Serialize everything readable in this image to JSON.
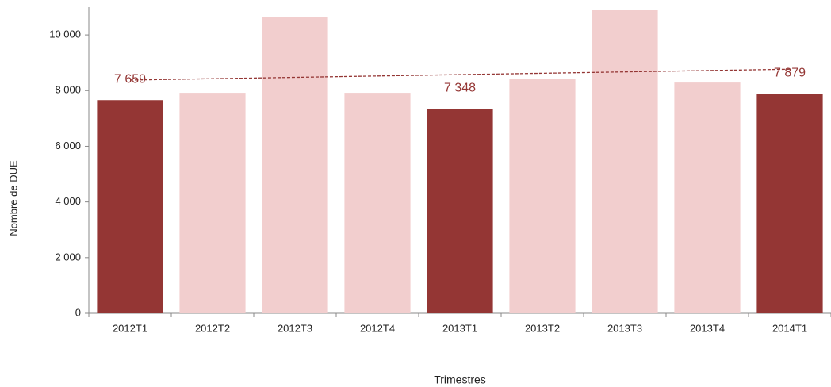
{
  "chart_data": {
    "type": "bar",
    "x_label": "Trimestres",
    "y_label": "Nombre de DUE",
    "categories": [
      "2012T1",
      "2012T2",
      "2012T3",
      "2012T4",
      "2013T1",
      "2013T2",
      "2013T3",
      "2013T4",
      "2014T1"
    ],
    "values": [
      7659,
      7920,
      10650,
      7920,
      7348,
      8430,
      10910,
      8290,
      7879
    ],
    "value_labels": [
      "7 659",
      null,
      null,
      null,
      "7 348",
      null,
      null,
      null,
      "7 879"
    ],
    "colors": [
      "#943634",
      "#f2cece",
      "#f2cece",
      "#f2cece",
      "#943634",
      "#f2cece",
      "#f2cece",
      "#f2cece",
      "#943634"
    ],
    "trendline": {
      "start": 8380,
      "end": 8770,
      "color": "#943634",
      "dashed": true
    },
    "ylim": [
      0,
      11000
    ],
    "yticks": [
      0,
      {
        "value": 2000,
        "label": "2 000"
      },
      {
        "value": 4000,
        "label": "4 000"
      },
      {
        "value": 6000,
        "label": "6 000"
      },
      {
        "value": 8000,
        "label": "8 000"
      },
      {
        "value": 10000,
        "label": "10 000"
      }
    ],
    "grid": false
  }
}
